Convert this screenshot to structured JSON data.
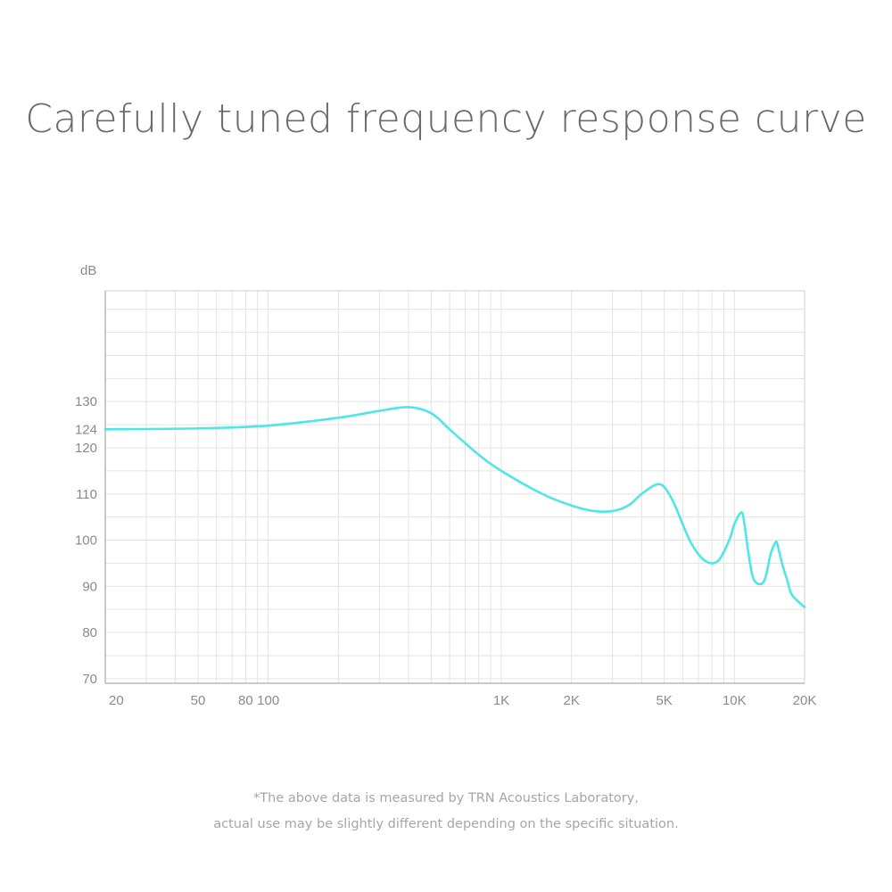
{
  "title": "Carefully tuned frequency response curve",
  "footnote": {
    "line1": "*The above data is measured by TRN Acoustics Laboratory,",
    "line2": "actual use may be slightly different depending on the specific situation."
  },
  "chart_data": {
    "type": "line",
    "title": "Carefully tuned frequency response curve",
    "xlabel": "",
    "ylabel": "dB",
    "x_scale": "log",
    "xlim": [
      20,
      20000
    ],
    "ylim": [
      69,
      154
    ],
    "grid": true,
    "line_color": "#4fe6e6",
    "x_ticks": [
      {
        "value": 20,
        "label": "20"
      },
      {
        "value": 50,
        "label": "50"
      },
      {
        "value": 80,
        "label": "80"
      },
      {
        "value": 100,
        "label": "100"
      },
      {
        "value": 1000,
        "label": "1K"
      },
      {
        "value": 2000,
        "label": "2K"
      },
      {
        "value": 5000,
        "label": "5K"
      },
      {
        "value": 10000,
        "label": "10K"
      },
      {
        "value": 20000,
        "label": "20K"
      }
    ],
    "y_ticks": [
      {
        "value": 70,
        "label": "70"
      },
      {
        "value": 80,
        "label": "80"
      },
      {
        "value": 90,
        "label": "90"
      },
      {
        "value": 100,
        "label": "100"
      },
      {
        "value": 110,
        "label": "110"
      },
      {
        "value": 120,
        "label": "120"
      },
      {
        "value": 124,
        "label": "124"
      },
      {
        "value": 130,
        "label": "130"
      }
    ],
    "series": [
      {
        "x": [
          20,
          50,
          100,
          200,
          300,
          400,
          500,
          600,
          800,
          1000,
          1500,
          2000,
          2500,
          3000,
          3500,
          4000,
          4600,
          5000,
          5500,
          6500,
          7500,
          8500,
          9500,
          10000,
          10700,
          11000,
          11500,
          12000,
          12700,
          13500,
          14300,
          15000,
          15300,
          16000,
          16800,
          17500,
          18500,
          20000
        ],
        "values": [
          124,
          124.2,
          124.8,
          126.5,
          128,
          128.8,
          127.5,
          124,
          118.5,
          115,
          110,
          107.5,
          106.3,
          106.3,
          107.5,
          110,
          112,
          111.5,
          108,
          99.5,
          95.5,
          95.5,
          100,
          103.5,
          106,
          104,
          97,
          92,
          90.5,
          91.5,
          97,
          99.5,
          99,
          95,
          91.5,
          88.5,
          87,
          85.5
        ]
      }
    ]
  }
}
